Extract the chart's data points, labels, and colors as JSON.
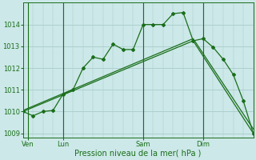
{
  "xlabel": "Pression niveau de la mer( hPa )",
  "bg_color": "#cce8e8",
  "grid_color": "#aacccc",
  "line_color": "#1a6e1a",
  "ylim": [
    1008.8,
    1015.0
  ],
  "xlim": [
    0,
    23
  ],
  "yticks": [
    1009,
    1010,
    1011,
    1012,
    1013,
    1014
  ],
  "xtick_labels": [
    "Ven",
    "Lun",
    "Sam",
    "Dim"
  ],
  "xtick_positions": [
    0.5,
    4,
    12,
    18
  ],
  "vline_positions": [
    0.5,
    4,
    12,
    18
  ],
  "line1_x": [
    0,
    1,
    2,
    3,
    4,
    5,
    6,
    7,
    8,
    9,
    10,
    11,
    12,
    13,
    14,
    15,
    16,
    17,
    18,
    19,
    20,
    21,
    22,
    23
  ],
  "line1_y": [
    1010.0,
    1009.8,
    1010.0,
    1010.05,
    1010.8,
    1011.0,
    1012.0,
    1012.5,
    1012.4,
    1013.1,
    1012.85,
    1012.85,
    1014.0,
    1014.0,
    1014.0,
    1014.5,
    1014.55,
    1013.25,
    1013.35,
    1012.95,
    1012.4,
    1011.7,
    1010.5,
    1009.0
  ],
  "line2_x": [
    0,
    17,
    23
  ],
  "line2_y": [
    1010.0,
    1013.25,
    1009.0
  ],
  "line3_x": [
    0,
    17,
    23
  ],
  "line3_y": [
    1010.05,
    1013.35,
    1009.2
  ],
  "marker_style": "D",
  "marker_size": 2.0,
  "line_width": 0.9,
  "tick_fontsize": 6.0,
  "xlabel_fontsize": 7.0
}
